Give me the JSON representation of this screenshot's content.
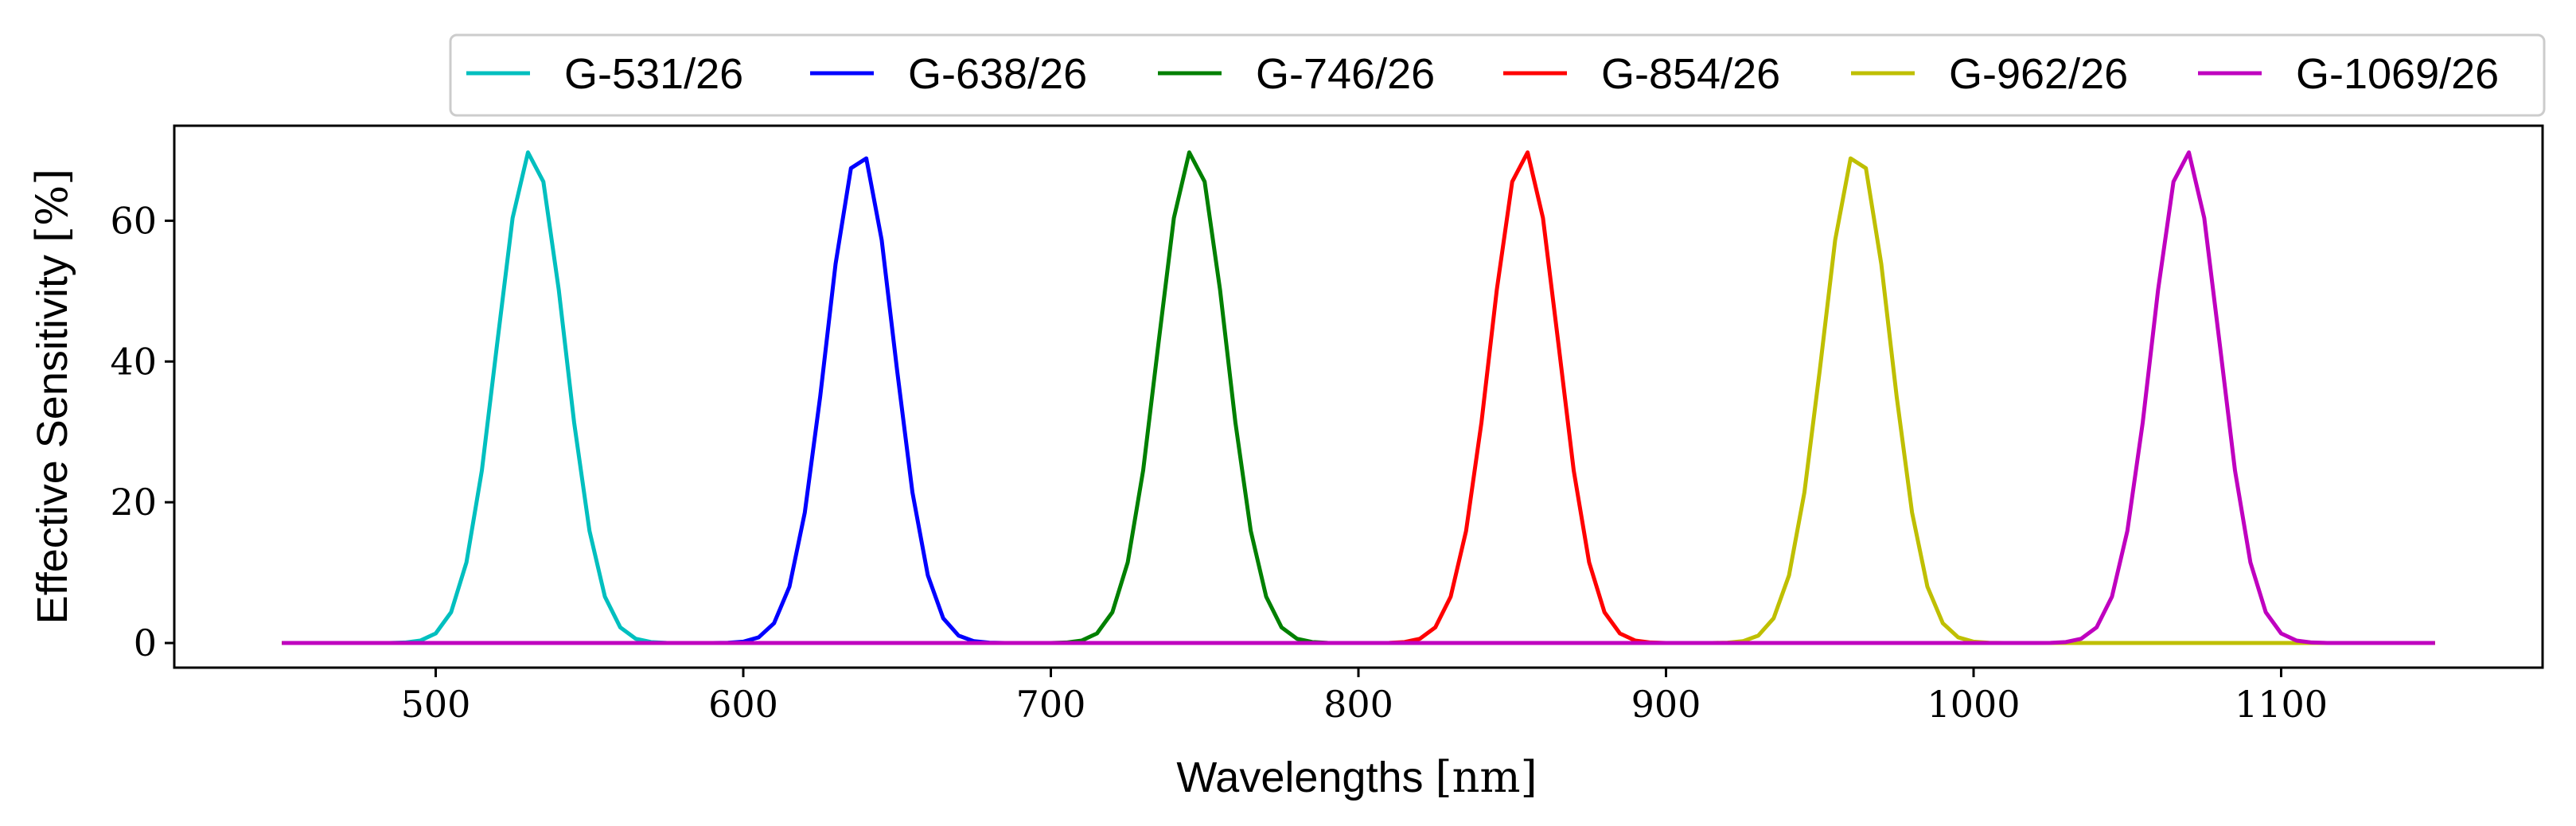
{
  "chart_data": {
    "type": "line",
    "title": "",
    "xlabel": "Wavelengths",
    "xlabel_unit": "[nm]",
    "ylabel": "Effective Sensitivity",
    "ylabel_unit": "[%]",
    "xlim": [
      415,
      1185
    ],
    "ylim": [
      -3.5,
      73.5
    ],
    "xticks": [
      500,
      600,
      700,
      800,
      900,
      1000,
      1100
    ],
    "yticks": [
      0,
      20,
      40,
      60
    ],
    "x_range": [
      450,
      1150
    ],
    "x_step": 5,
    "grid": false,
    "legend_position": "top, outside plot, single row",
    "series": [
      {
        "name": "G-531/26",
        "color": "#00bfbf",
        "center": 531,
        "fwhm": 26,
        "peak": 70
      },
      {
        "name": "G-638/26",
        "color": "#0000ff",
        "center": 638,
        "fwhm": 26,
        "peak": 70
      },
      {
        "name": "G-746/26",
        "color": "#008000",
        "center": 746,
        "fwhm": 26,
        "peak": 70
      },
      {
        "name": "G-854/26",
        "color": "#ff0000",
        "center": 854,
        "fwhm": 26,
        "peak": 70
      },
      {
        "name": "G-962/26",
        "color": "#bfbf00",
        "center": 962,
        "fwhm": 26,
        "peak": 70
      },
      {
        "name": "G-1069/26",
        "color": "#bf00bf",
        "center": 1069,
        "fwhm": 26,
        "peak": 70
      }
    ]
  }
}
